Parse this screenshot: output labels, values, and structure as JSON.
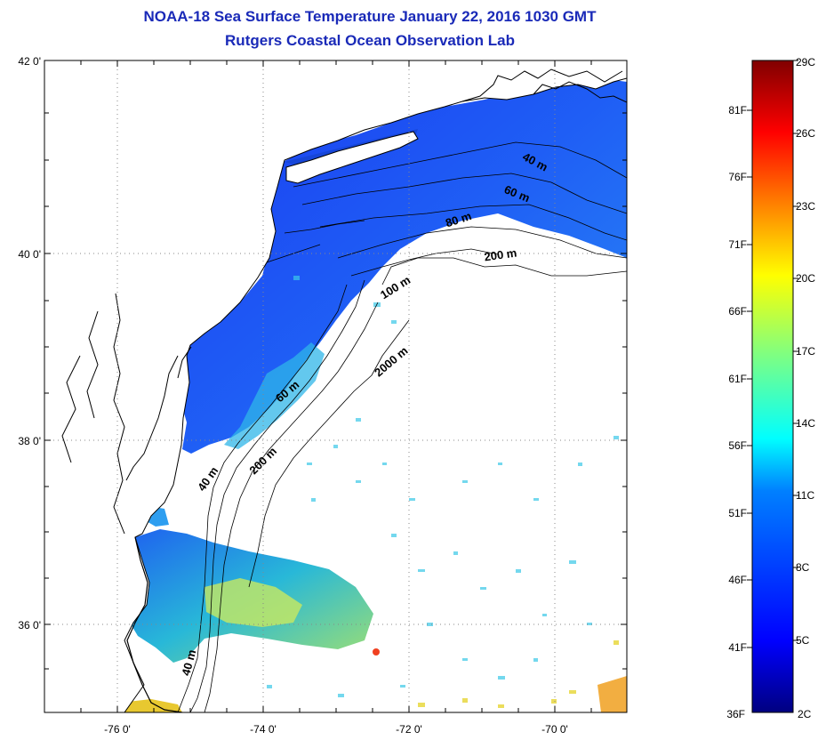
{
  "header": {
    "title": "NOAA-18 Sea Surface Temperature January 22, 2016 1030 GMT",
    "subtitle": "Rutgers Coastal Ocean Observation Lab"
  },
  "map": {
    "lat_labels": [
      "42 0'",
      "40 0'",
      "38 0'",
      "36 0'"
    ],
    "lon_labels": [
      "-76 0'",
      "-74 0'",
      "-72 0'",
      "-70 0'"
    ],
    "contours": [
      "40 m",
      "60 m",
      "80 m",
      "200 m",
      "100 m",
      "2000 m",
      "60 m",
      "200 m",
      "40 m",
      "40 m"
    ]
  },
  "colorbar": {
    "fahrenheit": [
      "81F",
      "76F",
      "71F",
      "66F",
      "61F",
      "56F",
      "51F",
      "46F",
      "41F",
      "36F"
    ],
    "celsius": [
      "29C",
      "26C",
      "23C",
      "20C",
      "17C",
      "14C",
      "11C",
      "8C",
      "5C",
      "2C"
    ],
    "colors": [
      "#000080",
      "#0000ff",
      "#0080ff",
      "#00ffff",
      "#80ff80",
      "#ffff00",
      "#ff8000",
      "#ff0000",
      "#800000"
    ]
  }
}
